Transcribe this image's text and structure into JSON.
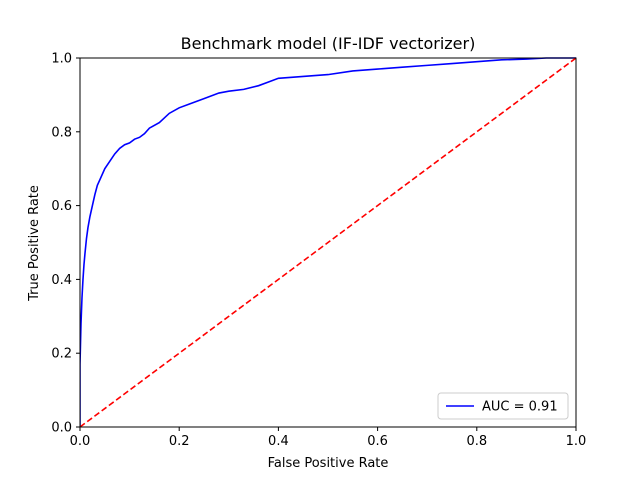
{
  "chart_data": {
    "type": "line",
    "title": "Benchmark model (IF-IDF vectorizer)",
    "xlabel": "False Positive Rate",
    "ylabel": "True Positive Rate",
    "xlim": [
      0.0,
      1.0
    ],
    "ylim": [
      0.0,
      1.0
    ],
    "xticks": [
      "0.0",
      "0.2",
      "0.4",
      "0.6",
      "0.8",
      "1.0"
    ],
    "yticks": [
      "0.0",
      "0.2",
      "0.4",
      "0.6",
      "0.8",
      "1.0"
    ],
    "grid": false,
    "legend": {
      "position": "lower-right",
      "entries": [
        "AUC = 0.91"
      ]
    },
    "series": [
      {
        "name": "AUC = 0.91",
        "color": "#0000ff",
        "style": "solid",
        "x": [
          0.0,
          0.0,
          0.002,
          0.004,
          0.006,
          0.008,
          0.01,
          0.013,
          0.016,
          0.02,
          0.025,
          0.03,
          0.035,
          0.04,
          0.05,
          0.06,
          0.07,
          0.08,
          0.09,
          0.1,
          0.11,
          0.12,
          0.13,
          0.14,
          0.16,
          0.18,
          0.2,
          0.22,
          0.25,
          0.28,
          0.3,
          0.33,
          0.36,
          0.38,
          0.4,
          0.45,
          0.5,
          0.55,
          0.6,
          0.65,
          0.7,
          0.75,
          0.8,
          0.85,
          0.9,
          0.94,
          0.97,
          1.0
        ],
        "y": [
          0.0,
          0.17,
          0.28,
          0.35,
          0.4,
          0.44,
          0.47,
          0.51,
          0.54,
          0.57,
          0.6,
          0.63,
          0.655,
          0.67,
          0.7,
          0.72,
          0.74,
          0.755,
          0.765,
          0.77,
          0.78,
          0.785,
          0.795,
          0.81,
          0.825,
          0.85,
          0.865,
          0.875,
          0.89,
          0.905,
          0.91,
          0.915,
          0.925,
          0.935,
          0.945,
          0.95,
          0.955,
          0.965,
          0.97,
          0.975,
          0.98,
          0.985,
          0.99,
          0.995,
          0.997,
          1.0,
          1.0,
          1.0
        ]
      },
      {
        "name": "",
        "color": "#ff0000",
        "style": "dashed",
        "x": [
          0.0,
          1.0
        ],
        "y": [
          0.0,
          1.0
        ]
      }
    ]
  }
}
